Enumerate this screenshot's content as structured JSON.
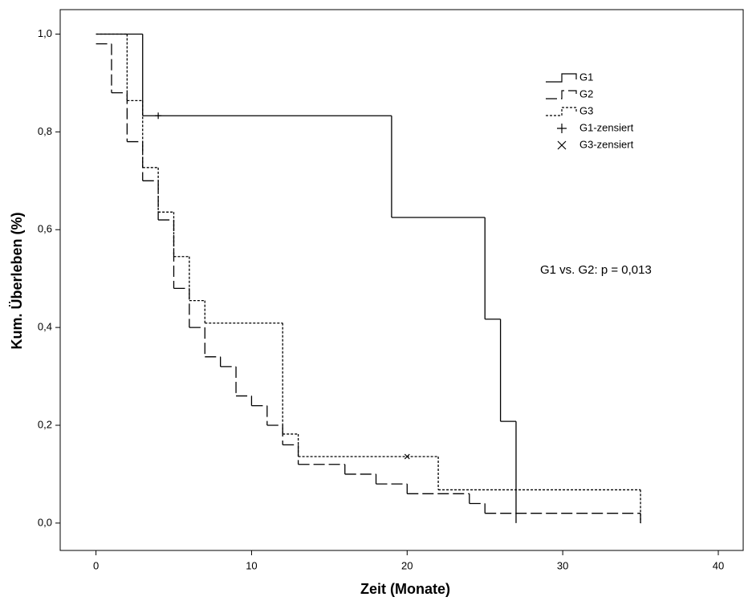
{
  "chart_data": {
    "type": "step",
    "step": "post",
    "x_label": "Zeit (Monate)",
    "y_label": "Kum. Überleben (%)",
    "annotation": "G1 vs. G2: p = 0,013",
    "xlim": [
      -2.3,
      41.6
    ],
    "ylim": [
      -0.056,
      1.05
    ],
    "xticks": [
      0,
      10,
      20,
      30,
      40
    ],
    "yticks": [
      {
        "value": 0,
        "label": "0,0"
      },
      {
        "value": 0.2,
        "label": "0,2"
      },
      {
        "value": 0.4,
        "label": "0,4"
      },
      {
        "value": 0.6,
        "label": "0,6"
      },
      {
        "value": 0.8,
        "label": "0,8"
      },
      {
        "value": 1.0,
        "label": "1,0"
      }
    ],
    "series": [
      {
        "name": "G1",
        "color": "#000000",
        "dash": "solid",
        "x": [
          0,
          3,
          19,
          25,
          26,
          27
        ],
        "values": [
          1.0,
          0.833,
          0.625,
          0.417,
          0.208,
          0
        ]
      },
      {
        "name": "G2",
        "color": "#000000",
        "dash": "dashed",
        "x": [
          0,
          1,
          2,
          3,
          4,
          5,
          6,
          7,
          8,
          9,
          10,
          11,
          12,
          13,
          16,
          18,
          20,
          24,
          25,
          35
        ],
        "values": [
          0.98,
          0.88,
          0.78,
          0.7,
          0.62,
          0.48,
          0.4,
          0.34,
          0.32,
          0.26,
          0.24,
          0.2,
          0.16,
          0.12,
          0.1,
          0.08,
          0.06,
          0.04,
          0.02,
          0
        ]
      },
      {
        "name": "G3",
        "color": "#000000",
        "dash": "dotted",
        "x": [
          0,
          2,
          3,
          4,
          5,
          6,
          7,
          12,
          13,
          22,
          35
        ],
        "values": [
          1.0,
          0.864,
          0.727,
          0.636,
          0.545,
          0.455,
          0.409,
          0.182,
          0.136,
          0.068,
          0
        ]
      }
    ],
    "censored": [
      {
        "name": "G1-zensiert",
        "series": 0,
        "marker": "plus",
        "x": [
          4
        ],
        "values": [
          0.833
        ]
      },
      {
        "name": "G3-zensiert",
        "series": 2,
        "marker": "cross",
        "x": [
          20
        ],
        "values": [
          0.136
        ]
      }
    ]
  }
}
